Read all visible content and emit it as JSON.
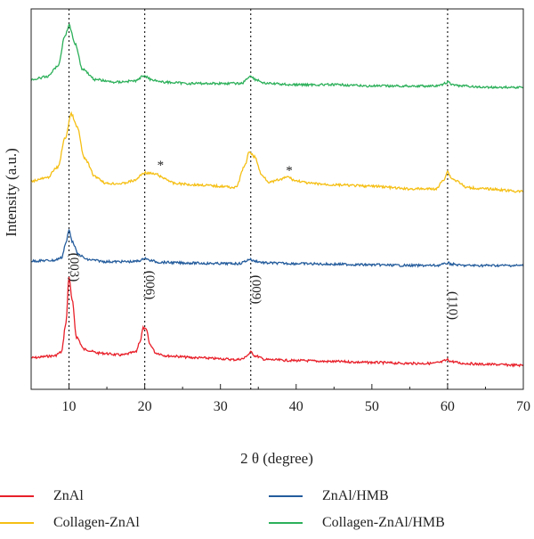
{
  "chart_data": {
    "type": "line",
    "title": "",
    "xlabel": "2 θ (degree)",
    "ylabel": "Intensity (a.u.)",
    "xlim": [
      5,
      70
    ],
    "xticks": [
      10,
      20,
      30,
      40,
      50,
      60,
      70
    ],
    "xtick_labels": [
      "10",
      "20",
      "30",
      "40",
      "50",
      "60",
      "70"
    ],
    "y_ticks_shown": false,
    "grid": false,
    "legend_position": "bottom",
    "reference_lines_x": [
      10,
      20,
      34,
      60
    ],
    "peak_labels": [
      {
        "text": "(003)",
        "x": 10
      },
      {
        "text": "(006)",
        "x": 20
      },
      {
        "text": "(009)",
        "x": 34
      },
      {
        "text": "(110)",
        "x": 60
      }
    ],
    "asterisks": [
      {
        "text": "*",
        "x": 21.5,
        "series": "Collagen-ZnAl"
      },
      {
        "text": "*",
        "x": 38.5,
        "series": "Collagen-ZnAl"
      }
    ],
    "series": [
      {
        "name": "ZnAl",
        "color": "#e8202a",
        "x": [
          5,
          8,
          9,
          9.6,
          10,
          10.4,
          11,
          12,
          14,
          17,
          18.8,
          19.4,
          19.8,
          20.2,
          20.7,
          21.5,
          23,
          27,
          30,
          32,
          33,
          33.6,
          34,
          34.6,
          36,
          40,
          45,
          50,
          55,
          58,
          59,
          59.7,
          60,
          60.5,
          62,
          65,
          70
        ],
        "y": [
          0.08,
          0.1,
          0.14,
          0.45,
          0.95,
          0.7,
          0.3,
          0.17,
          0.13,
          0.11,
          0.14,
          0.26,
          0.4,
          0.38,
          0.22,
          0.13,
          0.1,
          0.08,
          0.07,
          0.06,
          0.07,
          0.11,
          0.14,
          0.1,
          0.06,
          0.05,
          0.04,
          0.03,
          0.02,
          0.02,
          0.03,
          0.05,
          0.06,
          0.04,
          0.02,
          0.01,
          0.0
        ]
      },
      {
        "name": "ZnAl/HMB",
        "color": "#245c9c",
        "x": [
          5,
          8,
          9,
          9.6,
          10,
          10.5,
          11.2,
          12.5,
          15,
          18.5,
          19.5,
          20,
          20.6,
          22,
          25,
          30,
          32.5,
          33.4,
          33.8,
          34.4,
          36,
          40,
          45,
          50,
          55,
          58.5,
          59.5,
          60,
          60.6,
          62,
          65,
          70
        ],
        "y": [
          0.07,
          0.08,
          0.12,
          0.35,
          0.55,
          0.36,
          0.17,
          0.09,
          0.06,
          0.06,
          0.08,
          0.12,
          0.08,
          0.05,
          0.04,
          0.03,
          0.03,
          0.07,
          0.1,
          0.07,
          0.04,
          0.03,
          0.02,
          0.01,
          0.0,
          0.0,
          0.02,
          0.04,
          0.02,
          0.0,
          0.0,
          0.0
        ]
      },
      {
        "name": "Collagen-ZnAl",
        "color": "#f5bf14",
        "x": [
          5,
          7,
          8.5,
          9.5,
          10.3,
          11.1,
          12,
          13.5,
          15,
          17,
          18.5,
          20,
          21.5,
          22.5,
          24,
          27,
          30,
          32,
          33.3,
          33.8,
          34.5,
          35.5,
          36.5,
          38,
          38.8,
          40,
          42,
          45,
          50,
          55,
          58.5,
          59.5,
          60,
          60.5,
          61.2,
          62.5,
          65,
          70
        ],
        "y": [
          0.08,
          0.1,
          0.18,
          0.4,
          0.58,
          0.48,
          0.25,
          0.11,
          0.06,
          0.06,
          0.08,
          0.14,
          0.13,
          0.1,
          0.06,
          0.05,
          0.04,
          0.03,
          0.2,
          0.3,
          0.26,
          0.12,
          0.07,
          0.09,
          0.11,
          0.08,
          0.06,
          0.05,
          0.04,
          0.02,
          0.02,
          0.09,
          0.15,
          0.1,
          0.08,
          0.03,
          0.02,
          0.0
        ]
      },
      {
        "name": "Collagen-ZnAl/HMB",
        "color": "#2db05a",
        "x": [
          5,
          7,
          8.5,
          9.5,
          10,
          10.8,
          11.8,
          13.5,
          16,
          18.8,
          19.9,
          20.9,
          22.5,
          26,
          30,
          32.8,
          33.6,
          34,
          34.6,
          36,
          40,
          45,
          50,
          55,
          58.8,
          59.7,
          60,
          60.6,
          62,
          65,
          70
        ],
        "y": [
          0.06,
          0.08,
          0.16,
          0.4,
          0.48,
          0.34,
          0.14,
          0.06,
          0.04,
          0.05,
          0.09,
          0.06,
          0.04,
          0.03,
          0.03,
          0.03,
          0.07,
          0.09,
          0.06,
          0.03,
          0.02,
          0.02,
          0.01,
          0.01,
          0.01,
          0.03,
          0.04,
          0.02,
          0.01,
          0.0,
          0.0
        ]
      }
    ]
  }
}
